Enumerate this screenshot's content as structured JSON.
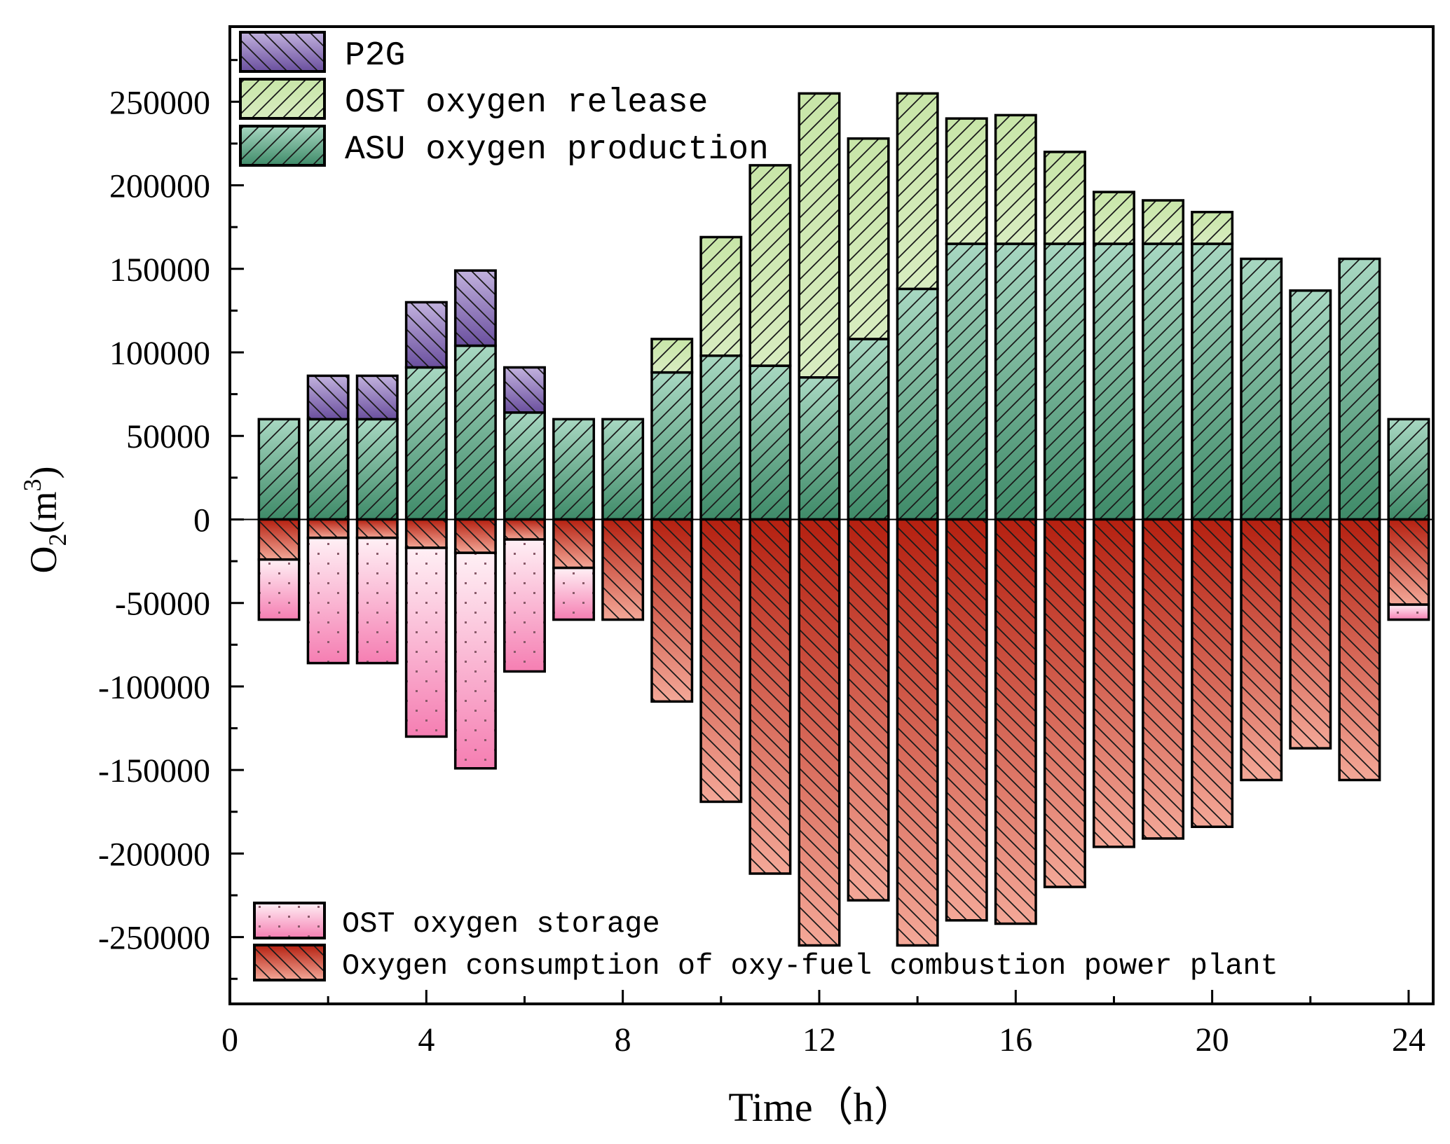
{
  "chart_data": {
    "type": "bar",
    "subtype": "stacked",
    "xlabel": "Time（h）",
    "ylabel": {
      "base": "O",
      "sub": "2",
      "unit": "(m",
      "sup": "3",
      "close": ")"
    },
    "xlim": [
      0,
      24.5
    ],
    "ylim": [
      -290000,
      295000
    ],
    "xticks": [
      0,
      4,
      8,
      12,
      16,
      20,
      24
    ],
    "xtick_labels": [
      "0",
      "4",
      "8",
      "12",
      "16",
      "20",
      "24"
    ],
    "yticks": [
      -250000,
      -200000,
      -150000,
      -100000,
      -50000,
      0,
      50000,
      100000,
      150000,
      200000,
      250000
    ],
    "ytick_labels": [
      "-250000",
      "-200000",
      "-150000",
      "-100000",
      "-50000",
      "0",
      "50000",
      "100000",
      "150000",
      "200000",
      "250000"
    ],
    "x": [
      1,
      2,
      3,
      4,
      5,
      6,
      7,
      8,
      9,
      10,
      11,
      12,
      13,
      14,
      15,
      16,
      17,
      18,
      19,
      20,
      21,
      22,
      23,
      24
    ],
    "series": [
      {
        "name": "ASU oxygen production",
        "key": "asu",
        "direction": "positive",
        "values": [
          60000,
          60000,
          60000,
          91000,
          104000,
          64000,
          60000,
          60000,
          88000,
          98000,
          92000,
          85000,
          108000,
          138000,
          165000,
          165000,
          165000,
          165000,
          165000,
          165000,
          156000,
          137000,
          156000,
          60000
        ]
      },
      {
        "name": "OST oxygen release",
        "key": "ost_release",
        "direction": "positive",
        "values": [
          0,
          0,
          0,
          0,
          0,
          0,
          0,
          0,
          20000,
          71000,
          120000,
          170000,
          120000,
          117000,
          75000,
          77000,
          55000,
          31000,
          26000,
          19000,
          0,
          0,
          0,
          0
        ]
      },
      {
        "name": "P2G",
        "key": "p2g",
        "direction": "positive",
        "values": [
          0,
          26000,
          26000,
          39000,
          45000,
          27000,
          0,
          0,
          0,
          0,
          0,
          0,
          0,
          0,
          0,
          0,
          0,
          0,
          0,
          0,
          0,
          0,
          0,
          0
        ]
      },
      {
        "name": "Oxygen consumption of oxy-fuel combustion power plant",
        "key": "consumption",
        "direction": "negative",
        "values": [
          -24000,
          -11000,
          -11000,
          -17000,
          -20000,
          -12000,
          -29000,
          -60000,
          -109000,
          -169000,
          -212000,
          -255000,
          -228000,
          -255000,
          -240000,
          -242000,
          -220000,
          -196000,
          -191000,
          -184000,
          -156000,
          -137000,
          -156000,
          -51000
        ]
      },
      {
        "name": "OST oxygen storage",
        "key": "ost_storage",
        "direction": "negative",
        "values": [
          -36000,
          -75000,
          -75000,
          -113000,
          -129000,
          -79000,
          -31000,
          0,
          0,
          0,
          0,
          0,
          0,
          0,
          0,
          0,
          0,
          0,
          0,
          0,
          0,
          0,
          0,
          -9000
        ]
      }
    ],
    "legends": [
      {
        "position": "top-left",
        "entries": [
          "P2G",
          "OST oxygen release",
          "ASU oxygen production"
        ],
        "keys": [
          "p2g",
          "ost_release",
          "asu"
        ]
      },
      {
        "position": "bottom-left",
        "entries": [
          "OST oxygen storage",
          "Oxygen consumption of oxy-fuel combustion power plant"
        ],
        "keys": [
          "ost_storage",
          "consumption"
        ]
      }
    ],
    "colors": {
      "asu_top": "#a8d8c2",
      "asu_bottom": "#3e8a68",
      "ost_release_top": "#c8e6a8",
      "ost_release_bottom": "#d8ecc0",
      "p2g_top": "#c2b2de",
      "p2g_bottom": "#6a4f9e",
      "consumption_top": "#b52010",
      "consumption_bottom": "#f4a898",
      "ost_storage_top": "#fff0f5",
      "ost_storage_bottom": "#f57eb2",
      "hatch_line": "#1a1a1a",
      "dot": "#8a5a6a",
      "border": "#000000"
    }
  }
}
